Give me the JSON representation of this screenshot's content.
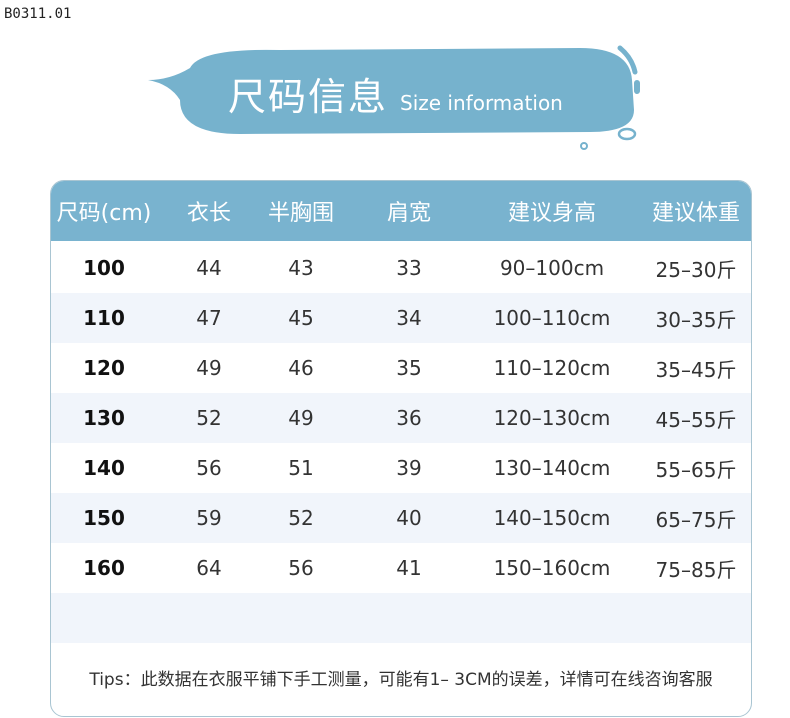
{
  "product_code": "B0311.01",
  "banner": {
    "title_cn": "尺码信息",
    "title_en": "Size information",
    "color": "#76b2cd"
  },
  "table": {
    "headers": [
      "尺码(cm)",
      "衣长",
      "半胸围",
      "肩宽",
      "建议身高",
      "建议体重"
    ],
    "header_color": "#79b3cf",
    "rows": [
      [
        "100",
        "44",
        "43",
        "33",
        "90–100cm",
        "25–30斤"
      ],
      [
        "110",
        "47",
        "45",
        "34",
        "100–110cm",
        "30–35斤"
      ],
      [
        "120",
        "49",
        "46",
        "35",
        "110–120cm",
        "35–45斤"
      ],
      [
        "130",
        "52",
        "49",
        "36",
        "120–130cm",
        "45–55斤"
      ],
      [
        "140",
        "56",
        "51",
        "39",
        "130–140cm",
        "55–65斤"
      ],
      [
        "150",
        "59",
        "52",
        "40",
        "140–150cm",
        "65–75斤"
      ],
      [
        "160",
        "64",
        "56",
        "41",
        "150–160cm",
        "75–85斤"
      ]
    ]
  },
  "tips": "Tips：此数据在衣服平铺下手工测量，可能有1– 3CM的误差，详情可在线咨询客服"
}
